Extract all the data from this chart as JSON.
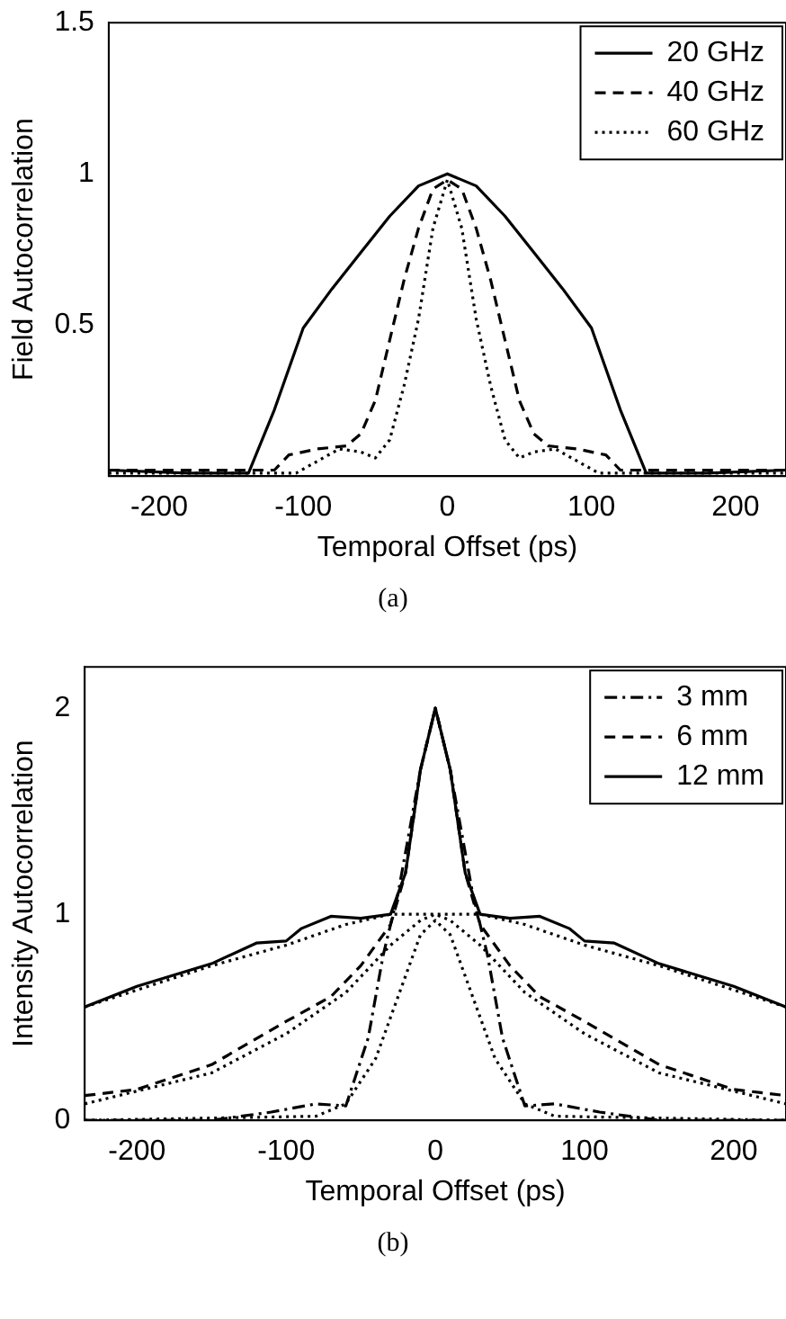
{
  "chart_data": [
    {
      "type": "line",
      "xlabel": "Temporal Offset (ps)",
      "ylabel": "Field Autocorrelation",
      "xlim": [
        -235,
        235
      ],
      "xticks": [
        -200,
        -100,
        0,
        100,
        200
      ],
      "ylim": [
        0,
        1.5
      ],
      "yticks": [
        0.5,
        1,
        1.5
      ],
      "grid": false,
      "legend": "top right",
      "marker": "none",
      "annotations": [
        "(a)"
      ],
      "series": [
        {
          "name": "20 GHz",
          "color": "#000000",
          "line_style": "solid",
          "x": [
            -235,
            -180,
            -138,
            -120,
            -100,
            -80,
            -60,
            -40,
            -20,
            0,
            20,
            40,
            60,
            80,
            100,
            120,
            138,
            180,
            235
          ],
          "values": [
            0.02,
            0.01,
            0.01,
            0.22,
            0.49,
            0.62,
            0.74,
            0.86,
            0.96,
            1,
            0.96,
            0.86,
            0.74,
            0.62,
            0.49,
            0.22,
            0.01,
            0.01,
            0.02
          ]
        },
        {
          "name": "40 GHz",
          "color": "#000000",
          "line_style": "dashed",
          "x": [
            -235,
            -120,
            -110,
            -90,
            -70,
            -60,
            -50,
            -40,
            -30,
            -20,
            -10,
            0,
            10,
            20,
            30,
            40,
            50,
            60,
            70,
            90,
            110,
            120,
            235
          ],
          "values": [
            0.02,
            0.02,
            0.07,
            0.09,
            0.1,
            0.14,
            0.25,
            0.45,
            0.65,
            0.82,
            0.95,
            0.98,
            0.95,
            0.82,
            0.65,
            0.45,
            0.25,
            0.14,
            0.1,
            0.09,
            0.07,
            0.02,
            0.02
          ]
        },
        {
          "name": "60 GHz",
          "color": "#000000",
          "line_style": "dotted",
          "x": [
            -235,
            -105,
            -90,
            -75,
            -60,
            -50,
            -40,
            -30,
            -20,
            -10,
            0,
            10,
            20,
            30,
            40,
            50,
            60,
            75,
            90,
            105,
            235
          ],
          "values": [
            0.01,
            0.01,
            0.05,
            0.09,
            0.08,
            0.06,
            0.12,
            0.3,
            0.52,
            0.82,
            0.98,
            0.82,
            0.52,
            0.3,
            0.12,
            0.06,
            0.08,
            0.09,
            0.05,
            0.01,
            0.01
          ]
        }
      ]
    },
    {
      "type": "line",
      "xlabel": "Temporal Offset (ps)",
      "ylabel": "Intensity Autocorrelation",
      "xlim": [
        -235,
        235
      ],
      "xticks": [
        -200,
        -100,
        0,
        100,
        200
      ],
      "ylim": [
        0,
        2.2
      ],
      "yticks": [
        0,
        1,
        2
      ],
      "grid": false,
      "legend": "top right",
      "marker": "none",
      "annotations": [
        "(b)"
      ],
      "series": [
        {
          "name": "3 mm",
          "color": "#000000",
          "line_style": "dashdot",
          "x": [
            -235,
            -150,
            -110,
            -80,
            -60,
            -45,
            -35,
            -25,
            -10,
            0,
            10,
            25,
            35,
            45,
            60,
            80,
            110,
            150,
            235
          ],
          "values": [
            0,
            0,
            0.04,
            0.08,
            0.07,
            0.4,
            0.8,
            1.1,
            1.7,
            2,
            1.7,
            1.1,
            0.8,
            0.4,
            0.07,
            0.08,
            0.04,
            0,
            0
          ]
        },
        {
          "name": "6 mm",
          "color": "#000000",
          "line_style": "dashed",
          "x": [
            -235,
            -200,
            -150,
            -100,
            -70,
            -50,
            -30,
            -20,
            -10,
            0,
            10,
            20,
            30,
            50,
            70,
            100,
            150,
            200,
            235
          ],
          "values": [
            0.12,
            0.15,
            0.27,
            0.48,
            0.6,
            0.75,
            0.95,
            1.2,
            1.7,
            2,
            1.7,
            1.2,
            0.95,
            0.75,
            0.6,
            0.48,
            0.27,
            0.15,
            0.12
          ]
        },
        {
          "name": "12 mm",
          "color": "#000000",
          "line_style": "solid",
          "x": [
            -235,
            -200,
            -150,
            -120,
            -100,
            -90,
            -70,
            -50,
            -30,
            -20,
            -10,
            0,
            10,
            20,
            30,
            50,
            70,
            90,
            100,
            120,
            150,
            200,
            235
          ],
          "values": [
            0.55,
            0.65,
            0.76,
            0.86,
            0.87,
            0.93,
            0.99,
            0.98,
            1.0,
            1.2,
            1.7,
            2,
            1.7,
            1.2,
            1.0,
            0.98,
            0.99,
            0.93,
            0.87,
            0.86,
            0.76,
            0.65,
            0.55
          ]
        },
        {
          "color": "#000000",
          "line_style": "dotted",
          "x": [
            -235,
            -150,
            -100,
            -60,
            -30,
            0,
            30,
            60,
            100,
            150,
            235
          ],
          "values": [
            0.55,
            0.75,
            0.85,
            0.95,
            1.0,
            1.0,
            1.0,
            0.95,
            0.85,
            0.75,
            0.55
          ]
        },
        {
          "color": "#000000",
          "line_style": "dotted",
          "x": [
            -235,
            -150,
            -100,
            -60,
            -30,
            -10,
            0,
            10,
            30,
            60,
            100,
            150,
            235
          ],
          "values": [
            0.08,
            0.23,
            0.42,
            0.62,
            0.85,
            0.97,
            1.0,
            0.97,
            0.85,
            0.62,
            0.42,
            0.23,
            0.08
          ]
        },
        {
          "color": "#000000",
          "line_style": "dotted",
          "x": [
            -235,
            -80,
            -60,
            -40,
            -20,
            -10,
            0,
            10,
            20,
            40,
            60,
            80,
            235
          ],
          "values": [
            0,
            0.02,
            0.08,
            0.3,
            0.7,
            0.9,
            0.97,
            0.9,
            0.7,
            0.3,
            0.08,
            0.02,
            0
          ]
        }
      ]
    }
  ]
}
